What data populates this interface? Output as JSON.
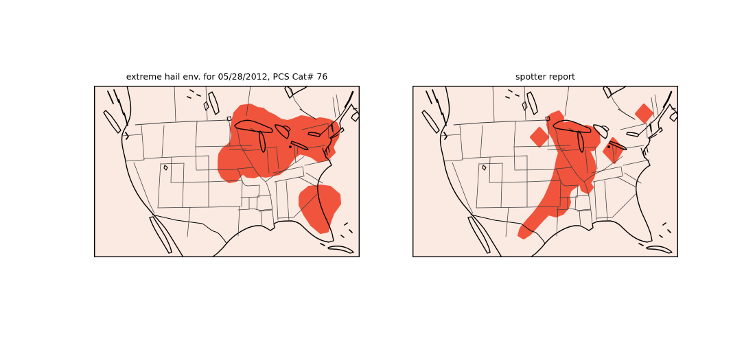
{
  "figure": {
    "background": "#ffffff",
    "type": "two-panel map figure (matplotlib basemap style)"
  },
  "map": {
    "land_color": "#fbeae2",
    "highlight_color": "#f1543c",
    "coast_color": "#000000",
    "state_border_color": "#3a3a3a",
    "frame_color": "#000000"
  },
  "panels": [
    {
      "id": "hail-env",
      "title": "extreme hail env. for 05/28/2012, PCS Cat# 76",
      "regions": [
        {
          "name": "midwest-great-lakes-to-mid-atlantic",
          "points": [
            [
              205,
              40
            ],
            [
              214,
              30
            ],
            [
              228,
              28
            ],
            [
              238,
              33
            ],
            [
              246,
              34
            ],
            [
              254,
              40
            ],
            [
              263,
              44
            ],
            [
              272,
              50
            ],
            [
              282,
              52
            ],
            [
              292,
              49
            ],
            [
              302,
              45
            ],
            [
              313,
              47
            ],
            [
              323,
              50
            ],
            [
              329,
              48
            ],
            [
              341,
              50
            ],
            [
              353,
              55
            ],
            [
              357,
              65
            ],
            [
              355,
              75
            ],
            [
              350,
              83
            ],
            [
              347,
              90
            ],
            [
              350,
              97
            ],
            [
              340,
              107
            ],
            [
              327,
              110
            ],
            [
              317,
              103
            ],
            [
              308,
              100
            ],
            [
              300,
              98
            ],
            [
              293,
              103
            ],
            [
              287,
              110
            ],
            [
              280,
              120
            ],
            [
              270,
              128
            ],
            [
              260,
              130
            ],
            [
              250,
              132
            ],
            [
              240,
              130
            ],
            [
              233,
              133
            ],
            [
              223,
              132
            ],
            [
              217,
              127
            ],
            [
              212,
              132
            ],
            [
              207,
              138
            ],
            [
              197,
              140
            ],
            [
              187,
              133
            ],
            [
              182,
              123
            ],
            [
              182,
              110
            ],
            [
              183,
              100
            ],
            [
              188,
              92
            ],
            [
              195,
              87
            ],
            [
              200,
              82
            ],
            [
              202,
              72
            ],
            [
              200,
              62
            ],
            [
              202,
              52
            ]
          ]
        },
        {
          "name": "florida-south-georgia",
          "points": [
            [
              302,
              157
            ],
            [
              313,
              148
            ],
            [
              330,
              146
            ],
            [
              344,
              148
            ],
            [
              357,
              159
            ],
            [
              358,
              172
            ],
            [
              348,
              186
            ],
            [
              343,
              200
            ],
            [
              340,
              212
            ],
            [
              330,
              214
            ],
            [
              317,
              203
            ],
            [
              307,
              188
            ],
            [
              300,
              174
            ],
            [
              300,
              162
            ]
          ]
        }
      ]
    },
    {
      "id": "spotter",
      "title": "spotter report",
      "regions": [
        {
          "name": "texas-oklahoma-missouri-upper-midwest-band",
          "points": [
            [
              203,
              42
            ],
            [
              213,
              38
            ],
            [
              219,
              46
            ],
            [
              218,
              56
            ],
            [
              228,
              54
            ],
            [
              238,
              55
            ],
            [
              247,
              61
            ],
            [
              254,
              59
            ],
            [
              263,
              62
            ],
            [
              271,
              69
            ],
            [
              272,
              82
            ],
            [
              264,
              93
            ],
            [
              256,
              94
            ],
            [
              260,
              101
            ],
            [
              264,
              110
            ],
            [
              266,
              122
            ],
            [
              263,
              134
            ],
            [
              258,
              142
            ],
            [
              262,
              148
            ],
            [
              256,
              156
            ],
            [
              247,
              152
            ],
            [
              245,
              142
            ],
            [
              237,
              147
            ],
            [
              230,
              152
            ],
            [
              227,
              160
            ],
            [
              229,
              170
            ],
            [
              226,
              178
            ],
            [
              219,
              186
            ],
            [
              209,
              190
            ],
            [
              198,
              187
            ],
            [
              189,
              196
            ],
            [
              180,
              206
            ],
            [
              171,
              216
            ],
            [
              162,
              222
            ],
            [
              155,
              218
            ],
            [
              158,
              208
            ],
            [
              167,
              197
            ],
            [
              177,
              186
            ],
            [
              186,
              174
            ],
            [
              193,
              163
            ],
            [
              198,
              152
            ],
            [
              202,
              142
            ],
            [
              206,
              131
            ],
            [
              209,
              119
            ],
            [
              211,
              108
            ],
            [
              214,
              98
            ],
            [
              210,
              88
            ],
            [
              206,
              78
            ],
            [
              200,
              68
            ],
            [
              197,
              57
            ],
            [
              198,
              46
            ]
          ]
        },
        {
          "name": "sd-mn-border-cell",
          "points": [
            [
              185,
              62
            ],
            [
              197,
              75
            ],
            [
              185,
              88
            ],
            [
              173,
              75
            ]
          ]
        },
        {
          "name": "lake-erie-ohio-cell",
          "points": [
            [
              292,
              77
            ],
            [
              306,
              92
            ],
            [
              294,
              112
            ],
            [
              279,
              96
            ]
          ]
        },
        {
          "name": "northern-new-england-cell",
          "points": [
            [
              337,
              28
            ],
            [
              349,
              40
            ],
            [
              338,
              53
            ],
            [
              326,
              41
            ]
          ]
        }
      ]
    }
  ]
}
